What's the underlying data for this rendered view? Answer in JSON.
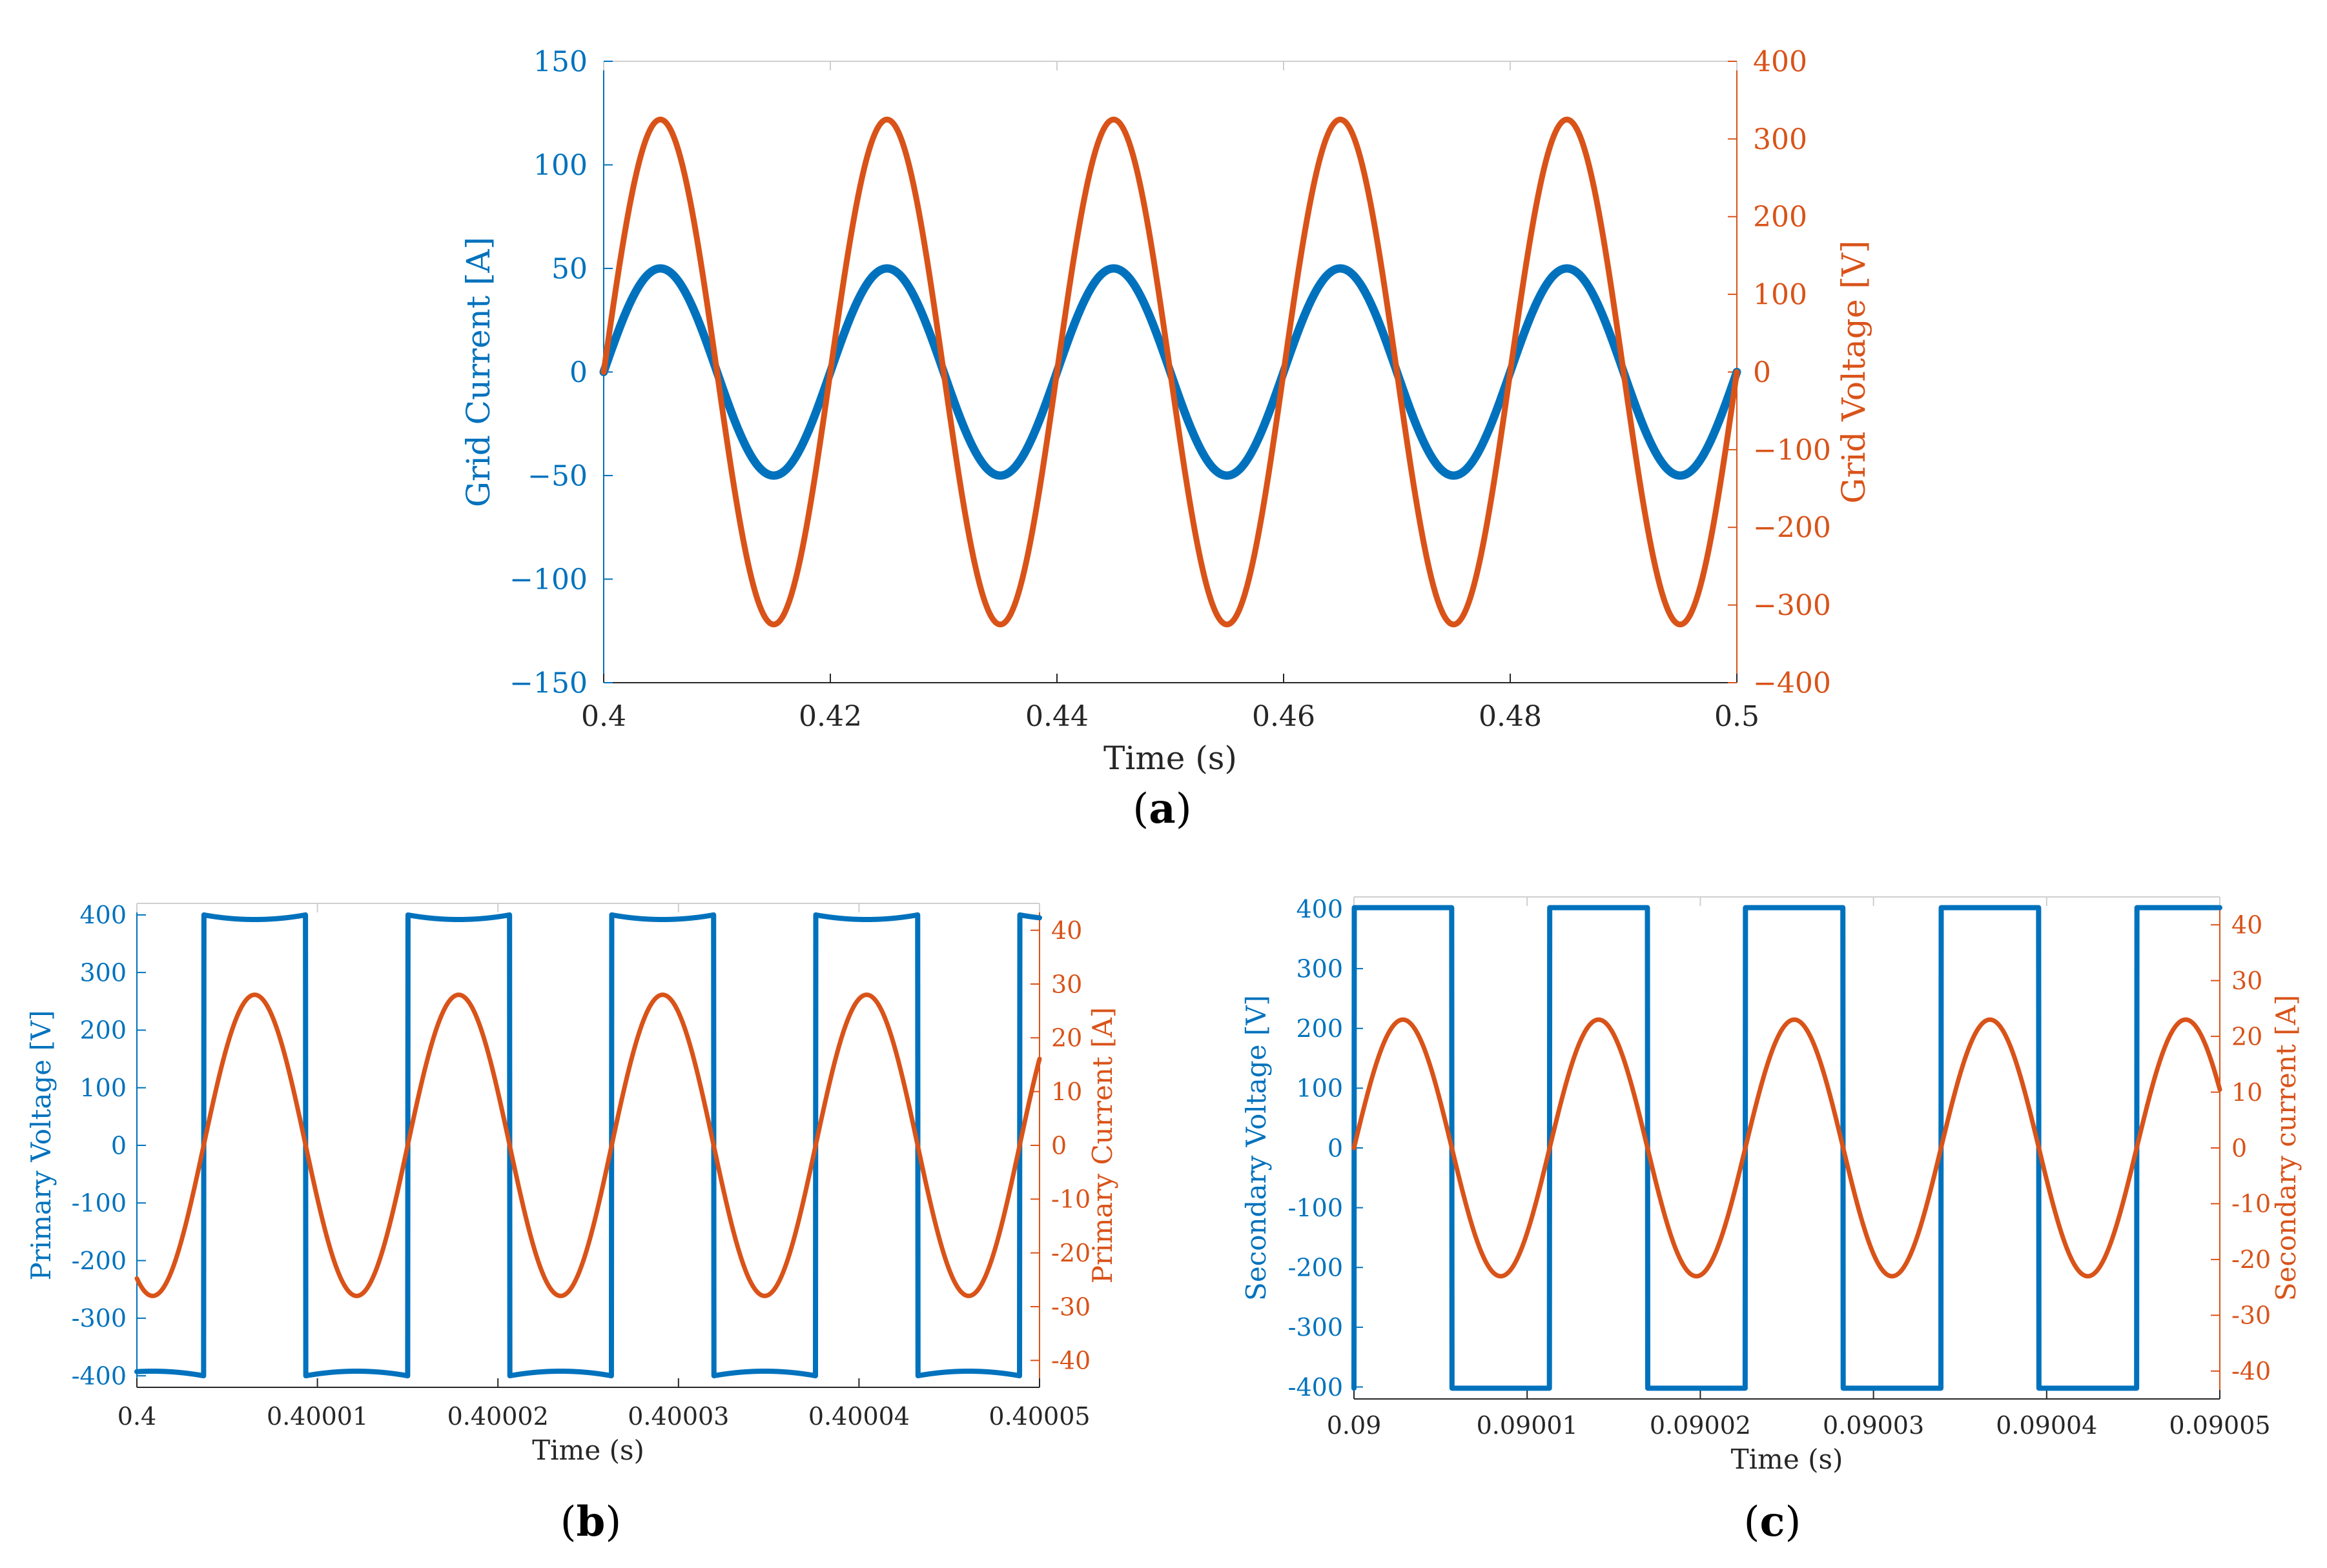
{
  "colors": {
    "blue": "#0072BD",
    "orange": "#D95319",
    "axis": "#262626",
    "bg": "#ffffff"
  },
  "chart_data": [
    {
      "id": "a",
      "type": "line",
      "caption": "a",
      "xlabel": "Time (s)",
      "ylabel_left": "Grid Current [A]",
      "ylabel_right": "Grid Voltage [V]",
      "xlim": [
        0.4,
        0.5
      ],
      "ylim_left": [
        -150,
        150
      ],
      "ylim_right": [
        -400,
        400
      ],
      "xticks": [
        "0.4",
        "0.42",
        "0.44",
        "0.46",
        "0.48",
        "0.5"
      ],
      "yticks_left": [
        "150",
        "100",
        "50",
        "0",
        "−50",
        "−100",
        "−150"
      ],
      "yticks_right": [
        "400",
        "300",
        "200",
        "100",
        "0",
        "−100",
        "−200",
        "−300",
        "−400"
      ],
      "series": [
        {
          "name": "Grid Current",
          "axis": "left",
          "color": "blue",
          "shape": "sine",
          "amplitude": 50,
          "frequency_hz": 50,
          "phase_deg": 0,
          "x_start": 0.4,
          "x_end": 0.5
        },
        {
          "name": "Grid Voltage",
          "axis": "right",
          "color": "orange",
          "shape": "sine",
          "amplitude": 325,
          "frequency_hz": 50,
          "phase_deg": 0,
          "x_start": 0.4,
          "x_end": 0.5
        }
      ]
    },
    {
      "id": "b",
      "type": "line",
      "caption": "b",
      "xlabel": "Time (s)",
      "ylabel_left": "Primary Voltage [V]",
      "ylabel_right": "Primary Current [A]",
      "xlim": [
        0.4,
        0.40005
      ],
      "ylim_left": [
        -420,
        420
      ],
      "ylim_right": [
        -45,
        45
      ],
      "xticks": [
        "0.4",
        "0.40001",
        "0.40002",
        "0.40003",
        "0.40004",
        "0.40005"
      ],
      "yticks_left": [
        "400",
        "300",
        "200",
        "100",
        "0",
        "-100",
        "-200",
        "-300",
        "-400"
      ],
      "yticks_right": [
        "40",
        "30",
        "20",
        "10",
        "0",
        "-10",
        "-20",
        "-30",
        "-40"
      ],
      "series": [
        {
          "name": "Primary Voltage",
          "axis": "left",
          "color": "blue",
          "shape": "square",
          "amplitude": 400,
          "droop": 8,
          "period_s": 1.13e-05,
          "first_rise_s": 0.4000037,
          "x_start": 0.4,
          "x_end": 0.40005
        },
        {
          "name": "Primary Current",
          "axis": "right",
          "color": "orange",
          "shape": "sine",
          "amplitude": 28,
          "period_s": 1.13e-05,
          "zero_up_s": 0.4000037,
          "x_start": 0.4,
          "x_end": 0.40005
        }
      ]
    },
    {
      "id": "c",
      "type": "line",
      "caption": "c",
      "xlabel": "Time (s)",
      "ylabel_left": "Secondary Voltage [V]",
      "ylabel_right": "Secondary current [A]",
      "xlim": [
        0.09,
        0.09005
      ],
      "ylim_left": [
        -420,
        420
      ],
      "ylim_right": [
        -45,
        45
      ],
      "xticks": [
        "0.09",
        "0.09001",
        "0.09002",
        "0.09003",
        "0.09004",
        "0.09005"
      ],
      "yticks_left": [
        "400",
        "300",
        "200",
        "100",
        "0",
        "-100",
        "-200",
        "-300",
        "-400"
      ],
      "yticks_right": [
        "40",
        "30",
        "20",
        "10",
        "0",
        "-10",
        "-20",
        "-30",
        "-40"
      ],
      "series": [
        {
          "name": "Secondary Voltage",
          "axis": "left",
          "color": "blue",
          "shape": "square",
          "amplitude": 402,
          "droop": 0,
          "period_s": 1.13e-05,
          "first_rise_s": 0.0900113,
          "x_start": 0.09,
          "x_end": 0.09005
        },
        {
          "name": "Secondary current",
          "axis": "right",
          "color": "orange",
          "shape": "sine",
          "amplitude": 23,
          "period_s": 1.13e-05,
          "zero_up_s": 0.0900113,
          "x_start": 0.09,
          "x_end": 0.09005
        }
      ]
    }
  ]
}
